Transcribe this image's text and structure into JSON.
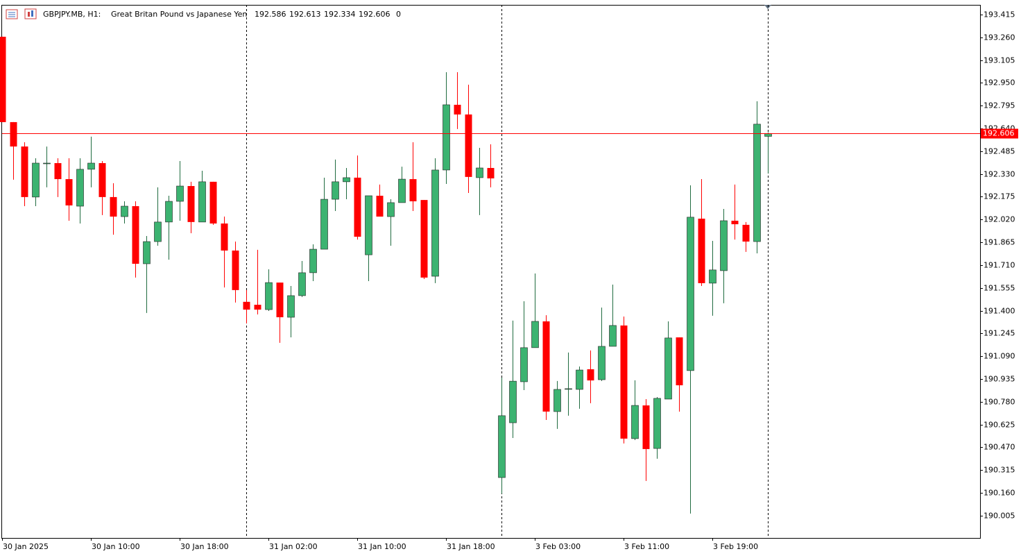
{
  "chart_data": {
    "type": "candlestick",
    "title": "GBPJPY.MB, H1:",
    "subtitle": "Great Britan Pound vs Japanese Yen",
    "header_extra": 0,
    "categories": [
      "30 Jan 2025",
      null,
      null,
      null,
      null,
      null,
      null,
      null,
      "30 Jan 10:00",
      null,
      null,
      null,
      null,
      null,
      null,
      null,
      "30 Jan 18:00",
      null,
      null,
      null,
      null,
      null,
      null,
      null,
      "31 Jan 02:00",
      null,
      null,
      null,
      null,
      null,
      null,
      null,
      "31 Jan 10:00",
      null,
      null,
      null,
      null,
      null,
      null,
      null,
      "31 Jan 18:00",
      null,
      null,
      null,
      null,
      null,
      null,
      null,
      "3 Feb 03:00",
      null,
      null,
      null,
      null,
      null,
      null,
      null,
      "3 Feb 11:00",
      null,
      null,
      null,
      null,
      null,
      null,
      null,
      "3 Feb 19:00",
      null,
      null,
      null,
      null,
      null
    ],
    "open": [
      193.264,
      192.683,
      192.517,
      192.173,
      192.404,
      192.404,
      192.295,
      192.111,
      192.362,
      192.404,
      192.173,
      192.04,
      192.111,
      191.719,
      191.87,
      192.003,
      192.144,
      192.248,
      192.003,
      192.277,
      191.993,
      191.809,
      191.46,
      191.44,
      191.407,
      191.591,
      191.355,
      191.502,
      191.658,
      191.818,
      192.158,
      192.277,
      192.305,
      191.78,
      192.182,
      192.04,
      192.135,
      192.295,
      192.153,
      191.634,
      192.357,
      192.801,
      192.735,
      192.305,
      192.371,
      190.264,
      190.637,
      190.916,
      191.148,
      191.327,
      190.713,
      190.869,
      190.864,
      191.001,
      190.93,
      191.157,
      191.299,
      190.529,
      190.755,
      190.462,
      190.798,
      191.218,
      190.992,
      192.026,
      191.587,
      191.672,
      192.012,
      191.984,
      191.87,
      192.586
    ],
    "high": [
      193.264,
      192.683,
      192.546,
      192.437,
      192.517,
      192.437,
      192.437,
      192.437,
      192.584,
      192.418,
      192.267,
      192.144,
      192.144,
      191.908,
      192.239,
      192.182,
      192.418,
      192.277,
      192.352,
      192.277,
      192.04,
      191.87,
      191.54,
      191.814,
      191.681,
      191.591,
      191.568,
      191.738,
      191.851,
      192.305,
      192.428,
      192.371,
      192.456,
      192.182,
      192.258,
      192.158,
      192.38,
      192.546,
      192.153,
      192.437,
      193.023,
      193.023,
      192.938,
      192.508,
      192.532,
      190.944,
      191.332,
      191.464,
      191.653,
      191.369,
      190.921,
      191.115,
      191.02,
      191.129,
      191.421,
      191.577,
      191.36,
      190.926,
      190.798,
      190.812,
      191.327,
      191.218,
      192.253,
      192.295,
      191.875,
      192.092,
      192.258,
      192.003,
      192.825,
      192.613
    ],
    "low": [
      192.683,
      192.291,
      192.111,
      192.111,
      192.239,
      192.173,
      192.012,
      191.993,
      192.239,
      192.05,
      191.917,
      191.993,
      191.625,
      191.384,
      191.842,
      191.747,
      192.012,
      191.927,
      192.003,
      191.984,
      191.558,
      191.455,
      191.313,
      191.374,
      191.398,
      191.181,
      191.218,
      191.493,
      191.601,
      191.818,
      192.078,
      192.158,
      191.884,
      191.601,
      192.04,
      191.842,
      192.135,
      192.078,
      191.615,
      191.587,
      192.262,
      192.636,
      192.201,
      192.05,
      192.239,
      190.155,
      190.533,
      190.859,
      191.148,
      190.656,
      190.595,
      190.685,
      190.732,
      190.77,
      190.921,
      191.157,
      190.496,
      190.519,
      190.241,
      190.392,
      190.798,
      190.713,
      190.019,
      191.568,
      191.365,
      191.45,
      191.884,
      191.8,
      191.79,
      192.334
    ],
    "close": [
      192.683,
      192.517,
      192.173,
      192.404,
      192.404,
      192.295,
      192.116,
      192.362,
      192.404,
      192.173,
      192.04,
      192.111,
      191.719,
      191.87,
      192.003,
      192.144,
      192.248,
      192.003,
      192.277,
      191.993,
      191.809,
      191.54,
      191.407,
      191.407,
      191.591,
      191.355,
      191.502,
      191.658,
      191.818,
      192.158,
      192.277,
      192.305,
      191.903,
      192.182,
      192.04,
      192.135,
      192.295,
      192.144,
      191.625,
      192.357,
      192.801,
      192.735,
      192.31,
      192.371,
      192.3,
      190.685,
      190.92,
      191.148,
      191.327,
      190.713,
      190.864,
      190.869,
      190.996,
      190.925,
      191.157,
      191.299,
      190.529,
      190.755,
      190.458,
      190.803,
      191.214,
      190.892,
      192.036,
      191.587,
      191.677,
      192.012,
      191.988,
      191.87,
      192.669,
      192.606
    ],
    "up_color": "#3cb371",
    "down_color": "#ff0000",
    "last_price_color": "#ff0000",
    "ylim": [
      189.853,
      193.481
    ],
    "yticks": [
      193.415,
      {
        "value": 193.26,
        "label": "193.260"
      },
      193.105,
      {
        "value": 192.95,
        "label": "192.950"
      },
      192.795,
      {
        "value": 192.64,
        "label": "192.640"
      },
      192.485,
      {
        "value": 192.33,
        "label": "192.330"
      },
      192.175,
      {
        "value": 192.02,
        "label": "192.020"
      },
      191.865,
      {
        "value": 191.71,
        "label": "191.710"
      },
      191.555,
      {
        "value": 191.4,
        "label": "191.400"
      },
      191.245,
      {
        "value": 191.09,
        "label": "191.090"
      },
      190.935,
      {
        "value": 190.78,
        "label": "190.780"
      },
      190.625,
      {
        "value": 190.47,
        "label": "190.470"
      },
      190.315,
      {
        "value": 190.16,
        "label": "190.160"
      },
      190.005
    ],
    "grid": false
  }
}
